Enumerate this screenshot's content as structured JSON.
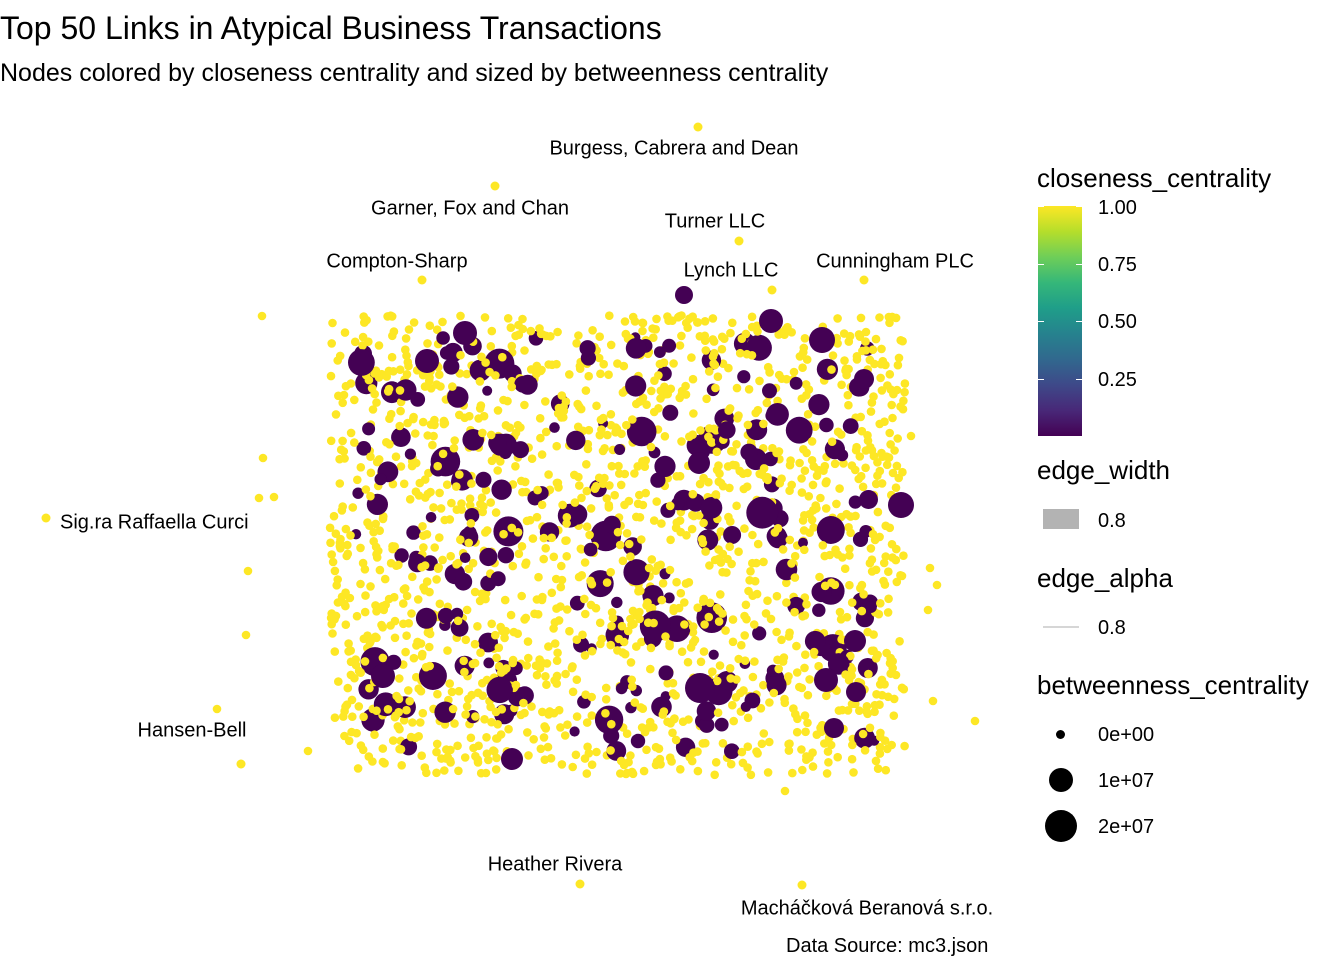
{
  "title": "Top 50 Links in Atypical Business Transactions",
  "subtitle": "Nodes colored by closeness centrality and sized by betweenness centrality",
  "caption": "Data Source: mc3.json",
  "legend": {
    "closeness_title": "closeness_centrality",
    "closeness_ticks": [
      "1.00",
      "0.75",
      "0.50",
      "0.25"
    ],
    "edge_width_title": "edge_width",
    "edge_width_value": "0.8",
    "edge_alpha_title": "edge_alpha",
    "edge_alpha_value": "0.8",
    "betweenness_title": "betweenness_centrality",
    "betweenness_ticks": [
      "0e+00",
      "1e+07",
      "2e+07"
    ]
  },
  "colors": {
    "high_closeness": "#fde725",
    "low_closeness": "#440154",
    "edge": "#d6d6d6"
  },
  "chart_data": {
    "type": "scatter",
    "title": "Top 50 Links in Atypical Business Transactions",
    "subtitle": "Nodes colored by closeness centrality and sized by betweenness centrality",
    "color_scale": "viridis",
    "color_range": [
      0,
      1
    ],
    "size_range": [
      0,
      20000000
    ],
    "axes_visible": false,
    "grid": false,
    "legend_position": "right",
    "labeled_nodes": [
      {
        "name": "Burgess, Cabrera and Dean",
        "closeness": 1.0,
        "betweenness": 0
      },
      {
        "name": "Garner, Fox and Chan",
        "closeness": 1.0,
        "betweenness": 0
      },
      {
        "name": "Turner LLC",
        "closeness": 1.0,
        "betweenness": 0
      },
      {
        "name": "Compton-Sharp",
        "closeness": 1.0,
        "betweenness": 0
      },
      {
        "name": "Lynch LLC",
        "closeness": 1.0,
        "betweenness": 0
      },
      {
        "name": "Cunningham PLC",
        "closeness": 1.0,
        "betweenness": 0
      },
      {
        "name": "Sig.ra Raffaella Curci",
        "closeness": 1.0,
        "betweenness": 0
      },
      {
        "name": "Hansen-Bell",
        "closeness": 1.0,
        "betweenness": 0
      },
      {
        "name": "Heather Rivera",
        "closeness": 1.0,
        "betweenness": 0
      },
      {
        "name": "Macháčková Beranová s.r.o.",
        "closeness": 1.0,
        "betweenness": 0
      }
    ]
  }
}
